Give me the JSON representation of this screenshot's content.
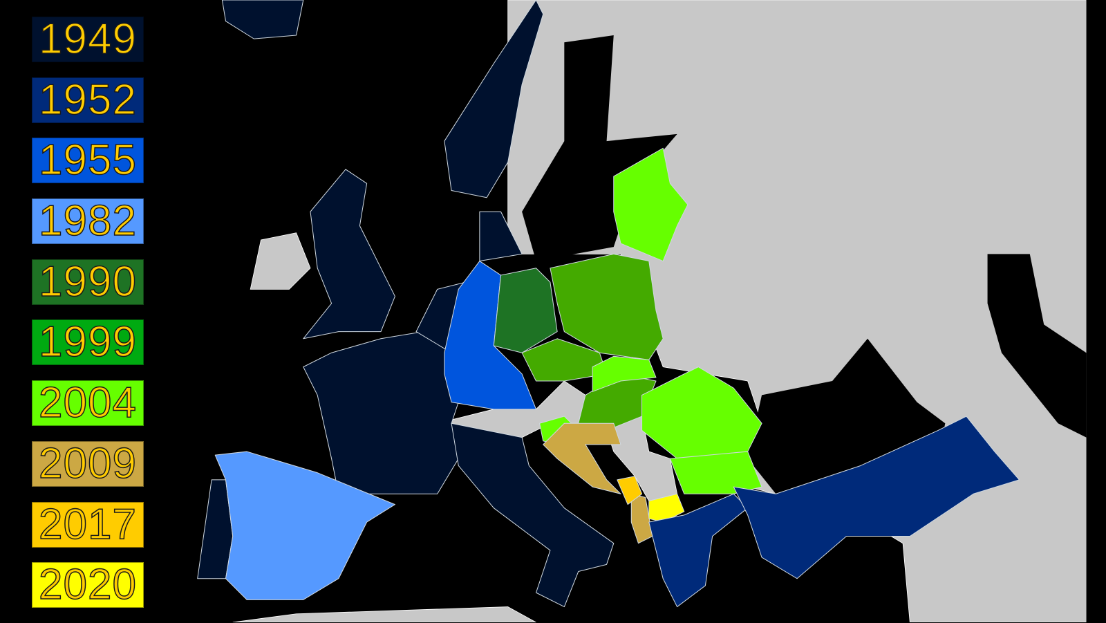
{
  "legend": {
    "items": [
      {
        "year": "1949",
        "color": "#00112e"
      },
      {
        "year": "1952",
        "color": "#002a7a"
      },
      {
        "year": "1955",
        "color": "#0055dd"
      },
      {
        "year": "1982",
        "color": "#5599ff"
      },
      {
        "year": "1990",
        "color": "#1e7324"
      },
      {
        "year": "1999",
        "color": "#00aa11"
      },
      {
        "year": "2004",
        "color": "#66ff00"
      },
      {
        "year": "2009",
        "color": "#cca844"
      },
      {
        "year": "2017",
        "color": "#ffcc00"
      },
      {
        "year": "2020",
        "color": "#ffff00"
      }
    ]
  },
  "colors": {
    "background": "#000000",
    "non_member_land": "#c8c8c8",
    "label_text": "#ffcc00",
    "poland_czech_hungary": "#44aa00"
  }
}
